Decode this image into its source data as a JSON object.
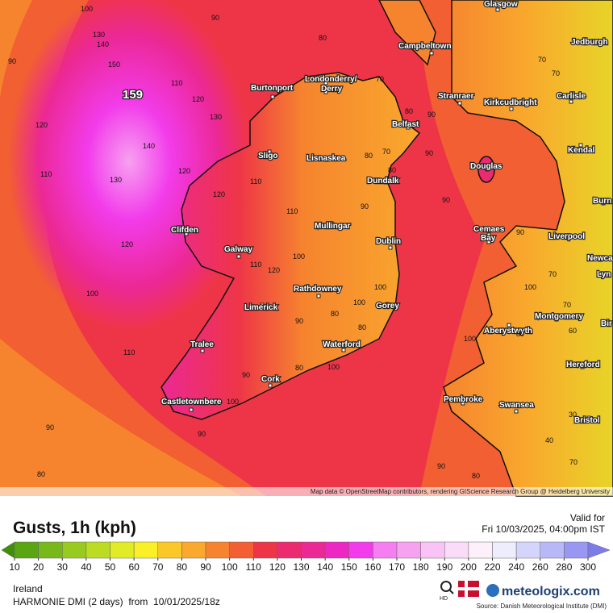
{
  "map": {
    "places": [
      "Glasgow",
      "Campbeltown",
      "Jedburgh",
      "Burtonport",
      "Londonderry/",
      "Derry",
      "Stranraer",
      "Kirkcudbright",
      "Carlisle",
      "Belfast",
      "Kendal",
      "Sligo",
      "Lisnaskea",
      "Douglas",
      "Dundalk",
      "Burn",
      "Clifden",
      "Mullingar",
      "Cemaes",
      "Bay",
      "Dublin",
      "Liverpool",
      "Galway",
      "Newca",
      "Lyn",
      "Rathdowney",
      "Limerick",
      "Gorey",
      "Montgomery",
      "Aberystwyth",
      "Bir",
      "Tralee",
      "Waterford",
      "Hereford",
      "Cork",
      "Castletownbere",
      "Pembroke",
      "Swansea",
      "Bristol"
    ],
    "contour_labels": [
      "100",
      "90",
      "130",
      "140",
      "80",
      "90",
      "150",
      "110",
      "120",
      "130",
      "120",
      "140",
      "110",
      "130",
      "120",
      "120",
      "110",
      "90",
      "110",
      "120",
      "100",
      "120",
      "110",
      "100",
      "110",
      "100",
      "80",
      "90",
      "80",
      "100",
      "80",
      "90",
      "100",
      "90",
      "90",
      "80",
      "90",
      "100",
      "80",
      "70",
      "60",
      "40",
      "70",
      "70",
      "70",
      "80",
      "90",
      "70",
      "80",
      "70",
      "80",
      "90",
      "100",
      "100",
      "70",
      "90",
      "90",
      "80",
      "30"
    ],
    "max_label": "159",
    "attribution": "Map data © OpenStreetMap contributors, rendering GIScience Research Group @ Heidelberg University"
  },
  "panel": {
    "title": "Gusts, 1h (kph)",
    "valid_label": "Valid for",
    "valid_time": "Fri 10/03/2025, 04:00pm IST",
    "region": "Ireland",
    "model": "HARMONIE DMI (2 days)  from  10/01/2025/18z",
    "hd": "HD",
    "brand": "meteologix.com",
    "source": "Source: Danish Meteorological Institute (DMI)"
  },
  "colorbar": {
    "ticks": [
      10,
      20,
      30,
      40,
      50,
      60,
      70,
      80,
      90,
      100,
      110,
      120,
      130,
      140,
      150,
      160,
      170,
      180,
      190,
      200,
      220,
      240,
      260,
      280,
      300
    ],
    "colors": [
      "#3f8f0a",
      "#5aa512",
      "#77b81a",
      "#98cb1f",
      "#bcdc23",
      "#e2ec26",
      "#faf028",
      "#fbc82a",
      "#f9a92d",
      "#f6842e",
      "#f25f32",
      "#ee3547",
      "#ec2a6f",
      "#ec2894",
      "#ed28c2",
      "#f23bea",
      "#f57ef0",
      "#f7a1f1",
      "#f9c3f5",
      "#fbdcf8",
      "#fdf0fb",
      "#ededfd",
      "#d5d5fb",
      "#b8b8f7",
      "#9898f1",
      "#7c7ce9"
    ]
  }
}
